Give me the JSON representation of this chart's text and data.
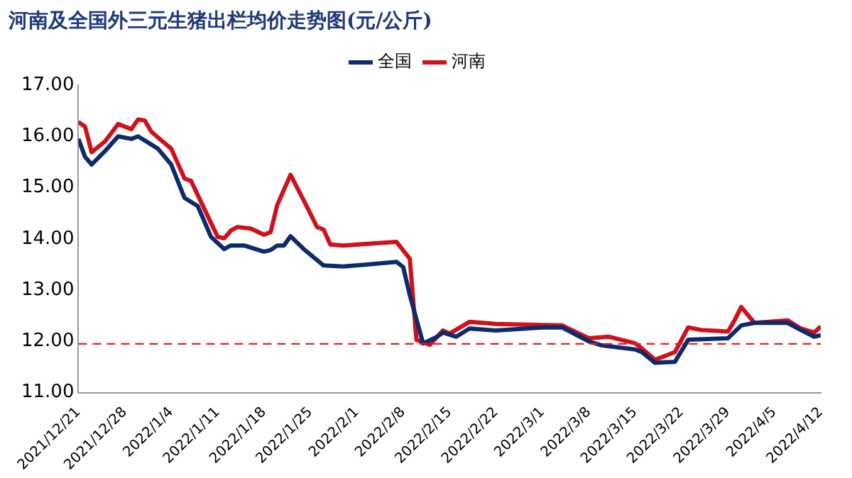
{
  "chart_data": {
    "type": "line",
    "title": "河南及全国外三元生猪出栏均价走势图(元/公斤)",
    "xlim": [
      "2021-12-21",
      "2022-04-12"
    ],
    "xticks": [
      {
        "value": "2021-12-21",
        "label": "2021/12/21"
      },
      {
        "value": "2021-12-28",
        "label": "2021/12/28"
      },
      {
        "value": "2022-01-04",
        "label": "2022/1/4"
      },
      {
        "value": "2022-01-11",
        "label": "2022/1/11"
      },
      {
        "value": "2022-01-18",
        "label": "2022/1/18"
      },
      {
        "value": "2022-01-25",
        "label": "2022/1/25"
      },
      {
        "value": "2022-02-01",
        "label": "2022/2/1"
      },
      {
        "value": "2022-02-08",
        "label": "2022/2/8"
      },
      {
        "value": "2022-02-15",
        "label": "2022/2/15"
      },
      {
        "value": "2022-02-22",
        "label": "2022/2/22"
      },
      {
        "value": "2022-03-01",
        "label": "2022/3/1"
      },
      {
        "value": "2022-03-08",
        "label": "2022/3/8"
      },
      {
        "value": "2022-03-15",
        "label": "2022/3/15"
      },
      {
        "value": "2022-03-22",
        "label": "2022/3/22"
      },
      {
        "value": "2022-03-29",
        "label": "2022/3/29"
      },
      {
        "value": "2022-04-05",
        "label": "2022/4/5"
      },
      {
        "value": "2022-04-12",
        "label": "2022/4/12"
      }
    ],
    "ylim": [
      11,
      17
    ],
    "yticks": [
      {
        "value": 11,
        "label": "11.00"
      },
      {
        "value": 12,
        "label": "12.00"
      },
      {
        "value": 13,
        "label": "13.00"
      },
      {
        "value": 14,
        "label": "14.00"
      },
      {
        "value": 15,
        "label": "15.00"
      },
      {
        "value": 16,
        "label": "16.00"
      },
      {
        "value": 17,
        "label": "17.00"
      }
    ],
    "grid": false,
    "legend": "top",
    "marker": "none",
    "line_style": "solid",
    "ref_lines": [
      {
        "axis": "y",
        "value": 11.95,
        "color": "#e02020",
        "line_style": "dashed"
      }
    ],
    "series": [
      {
        "name": "全国",
        "color": "#0d2a6e",
        "x": [
          "2021-12-21",
          "2021-12-22",
          "2021-12-23",
          "2021-12-25",
          "2021-12-27",
          "2021-12-29",
          "2021-12-30",
          "2022-01-02",
          "2022-01-04",
          "2022-01-06",
          "2022-01-08",
          "2022-01-10",
          "2022-01-12",
          "2022-01-13",
          "2022-01-15",
          "2022-01-18",
          "2022-01-19",
          "2022-01-20",
          "2022-01-21",
          "2022-01-22",
          "2022-01-24",
          "2022-01-27",
          "2022-01-30",
          "2022-02-07",
          "2022-02-08",
          "2022-02-09",
          "2022-02-11",
          "2022-02-13",
          "2022-02-14",
          "2022-02-16",
          "2022-02-18",
          "2022-02-22",
          "2022-03-01",
          "2022-03-04",
          "2022-03-08",
          "2022-03-10",
          "2022-03-15",
          "2022-03-16",
          "2022-03-18",
          "2022-03-21",
          "2022-03-23",
          "2022-03-29",
          "2022-03-31",
          "2022-04-02",
          "2022-04-07",
          "2022-04-09",
          "2022-04-11",
          "2022-04-12"
        ],
        "values": [
          15.95,
          15.6,
          15.45,
          15.71,
          16.0,
          15.95,
          16.0,
          15.76,
          15.45,
          14.8,
          14.64,
          14.04,
          13.8,
          13.87,
          13.87,
          13.75,
          13.78,
          13.87,
          13.87,
          14.05,
          13.8,
          13.48,
          13.46,
          13.55,
          13.45,
          12.9,
          11.96,
          12.08,
          12.17,
          12.09,
          12.25,
          12.21,
          12.27,
          12.27,
          12.0,
          11.92,
          11.84,
          11.79,
          11.58,
          11.6,
          12.03,
          12.06,
          12.31,
          12.36,
          12.36,
          12.22,
          12.09,
          12.12
        ]
      },
      {
        "name": "河南",
        "color": "#d0101a",
        "x": [
          "2021-12-21",
          "2021-12-22",
          "2021-12-23",
          "2021-12-25",
          "2021-12-27",
          "2021-12-29",
          "2021-12-30",
          "2021-12-31",
          "2022-01-01",
          "2022-01-04",
          "2022-01-06",
          "2022-01-07",
          "2022-01-11",
          "2022-01-12",
          "2022-01-13",
          "2022-01-14",
          "2022-01-16",
          "2022-01-18",
          "2022-01-19",
          "2022-01-20",
          "2022-01-22",
          "2022-01-24",
          "2022-01-26",
          "2022-01-27",
          "2022-01-28",
          "2022-01-30",
          "2022-02-07",
          "2022-02-09",
          "2022-02-10",
          "2022-02-12",
          "2022-02-14",
          "2022-02-15",
          "2022-02-18",
          "2022-02-22",
          "2022-03-04",
          "2022-03-08",
          "2022-03-11",
          "2022-03-15",
          "2022-03-16",
          "2022-03-18",
          "2022-03-21",
          "2022-03-23",
          "2022-03-25",
          "2022-03-29",
          "2022-03-30",
          "2022-03-31",
          "2022-04-02",
          "2022-04-07",
          "2022-04-09",
          "2022-04-11",
          "2022-04-12"
        ],
        "values": [
          16.28,
          16.19,
          15.69,
          15.9,
          16.24,
          16.14,
          16.33,
          16.31,
          16.09,
          15.76,
          15.18,
          15.13,
          14.04,
          14.01,
          14.16,
          14.23,
          14.2,
          14.08,
          14.13,
          14.66,
          15.25,
          14.75,
          14.23,
          14.18,
          13.89,
          13.87,
          13.94,
          13.61,
          12.03,
          11.93,
          12.21,
          12.15,
          12.38,
          12.34,
          12.31,
          12.06,
          12.09,
          11.96,
          11.86,
          11.64,
          11.79,
          12.27,
          12.22,
          12.19,
          12.41,
          12.67,
          12.36,
          12.41,
          12.25,
          12.17,
          12.29
        ]
      }
    ]
  }
}
